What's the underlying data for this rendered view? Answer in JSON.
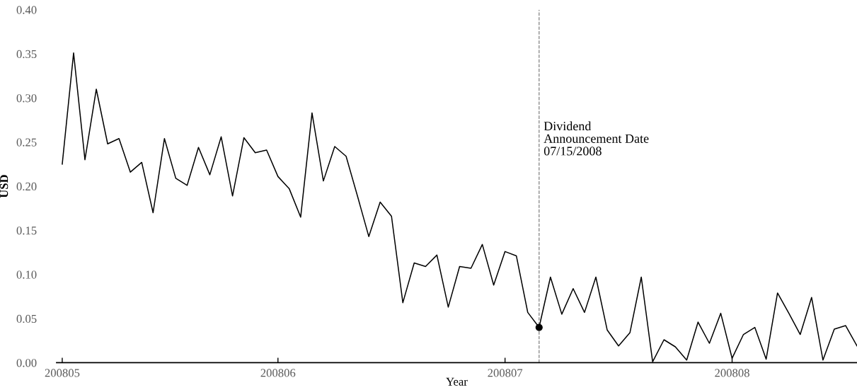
{
  "chart_data": {
    "type": "line",
    "xlabel": "Year",
    "ylabel": "USD",
    "categories": [
      "200805",
      null,
      null,
      null,
      null,
      null,
      null,
      null,
      null,
      null,
      null,
      null,
      null,
      null,
      null,
      null,
      null,
      null,
      null,
      "200806",
      null,
      null,
      null,
      null,
      null,
      null,
      null,
      null,
      null,
      null,
      null,
      null,
      null,
      null,
      null,
      null,
      null,
      null,
      null,
      "200807",
      null,
      null,
      null,
      null,
      null,
      null,
      null,
      null,
      null,
      null,
      null,
      null,
      null,
      null,
      null,
      null,
      null,
      null,
      null,
      "200808",
      null,
      null,
      null,
      null,
      null,
      null,
      null,
      null,
      null,
      null,
      null
    ],
    "series": [
      {
        "color": "#000000",
        "marker": "none",
        "values": [
          0.225,
          0.351,
          0.23,
          0.31,
          0.248,
          0.254,
          0.216,
          0.227,
          0.17,
          0.254,
          0.209,
          0.201,
          0.244,
          0.213,
          0.256,
          0.189,
          0.255,
          0.238,
          0.241,
          0.211,
          0.197,
          0.165,
          0.283,
          0.206,
          0.245,
          0.234,
          0.189,
          0.143,
          0.182,
          0.166,
          0.068,
          0.113,
          0.109,
          0.122,
          0.063,
          0.109,
          0.107,
          0.134,
          0.088,
          0.126,
          0.121,
          0.057,
          0.04,
          0.097,
          0.055,
          0.084,
          0.057,
          0.097,
          0.037,
          0.019,
          0.034,
          0.097,
          0.001,
          0.026,
          0.018,
          0.003,
          0.046,
          0.022,
          0.056,
          0.005,
          0.032,
          0.04,
          0.004,
          0.079,
          0.056,
          0.032,
          0.074,
          0.003,
          0.038,
          0.042,
          0.019
        ]
      },
      {
        "type": "scatter",
        "color": "#000000",
        "marker": "circle",
        "values": [
          null,
          null,
          null,
          null,
          null,
          null,
          null,
          null,
          null,
          null,
          null,
          null,
          null,
          null,
          null,
          null,
          null,
          null,
          null,
          null,
          null,
          null,
          null,
          null,
          null,
          null,
          null,
          null,
          null,
          null,
          null,
          null,
          null,
          null,
          null,
          null,
          null,
          null,
          null,
          null,
          null,
          null,
          0.04,
          null,
          null,
          null,
          null,
          null,
          null,
          null,
          null,
          null,
          null,
          null,
          null,
          null,
          null,
          null,
          null,
          null,
          null,
          null,
          null,
          null,
          null,
          null,
          null,
          null,
          null,
          null,
          null
        ]
      }
    ],
    "ylim": [
      0,
      0.4
    ],
    "yticks": [
      {
        "value": 0,
        "label": "0.00"
      },
      {
        "value": 0.05,
        "label": "0.05"
      },
      {
        "value": 0.1,
        "label": "0.10"
      },
      {
        "value": 0.15,
        "label": "0.15"
      },
      {
        "value": 0.2,
        "label": "0.20"
      },
      {
        "value": 0.25,
        "label": "0.25"
      },
      {
        "value": 0.3,
        "label": "0.30"
      },
      {
        "value": 0.35,
        "label": "0.35"
      },
      {
        "value": 0.4,
        "label": "0.40"
      }
    ],
    "annotations": [
      "Dividend\nAnnouncement Date\n07/15/2008"
    ],
    "legend": false
  }
}
